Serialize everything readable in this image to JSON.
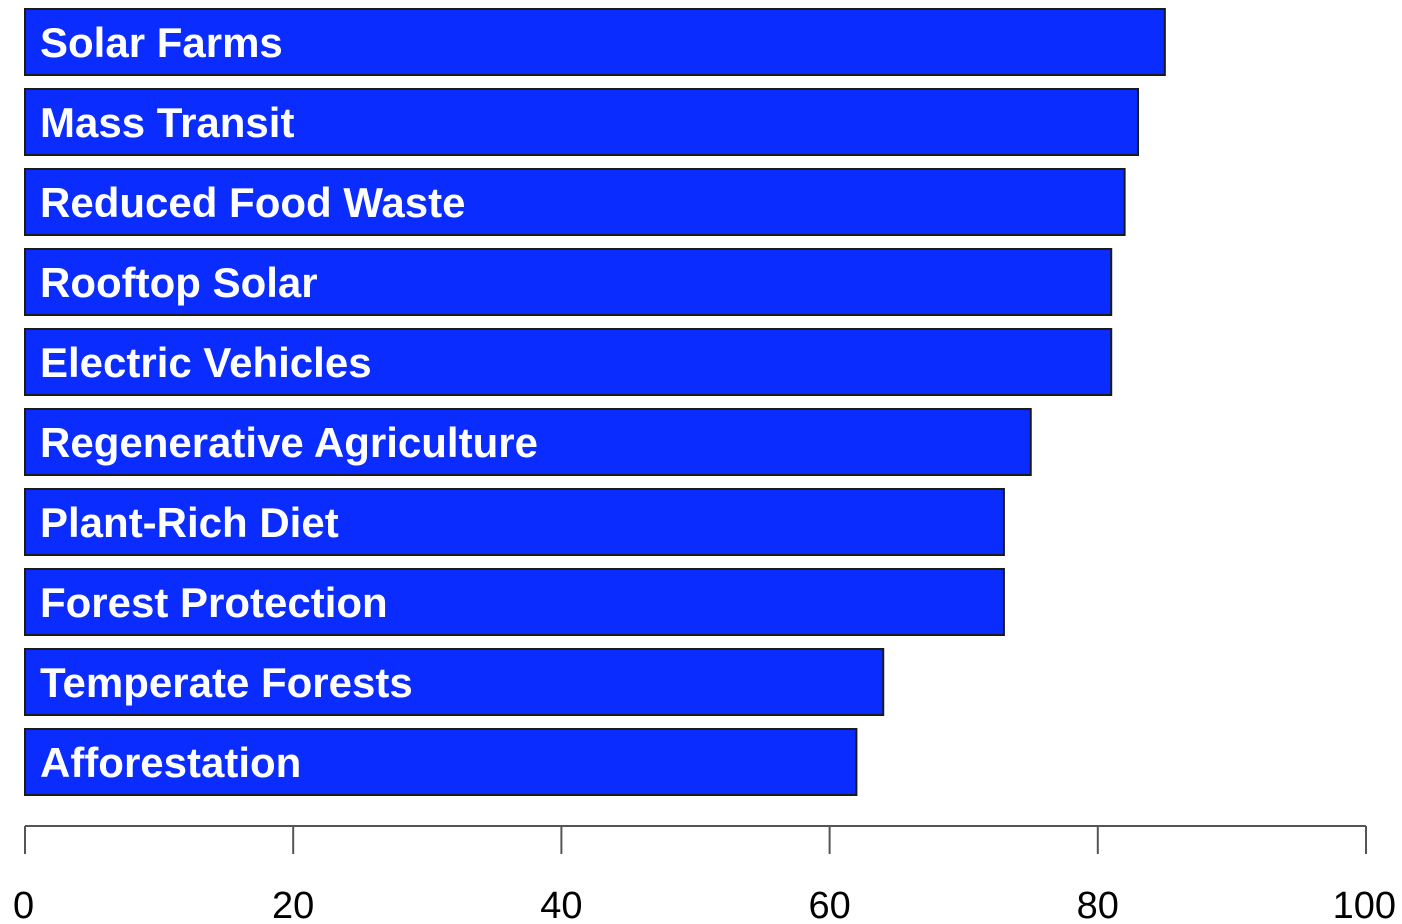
{
  "chart_data": {
    "type": "bar",
    "orientation": "horizontal",
    "categories": [
      "Solar Farms",
      "Mass Transit",
      "Reduced Food Waste",
      "Rooftop Solar",
      "Electric Vehicles",
      "Regenerative Agriculture",
      "Plant-Rich Diet",
      "Forest Protection",
      "Temperate Forests",
      "Afforestation"
    ],
    "values": [
      85,
      83,
      82,
      81,
      81,
      75,
      73,
      73,
      64,
      62
    ],
    "xlim": [
      0,
      100
    ],
    "x_ticks": [
      0,
      20,
      40,
      60,
      80,
      100
    ],
    "x_tick_labels": [
      "0",
      "20",
      "40",
      "60",
      "80",
      "100"
    ],
    "title": "",
    "xlabel": "",
    "ylabel": "",
    "labels_inside_bars": true,
    "grid": false,
    "legend": "none",
    "colors": {
      "bar_fill": "#0a2cff",
      "bar_border": "#1a1a1a",
      "label_text": "#ffffff",
      "axis": "#555555"
    }
  }
}
